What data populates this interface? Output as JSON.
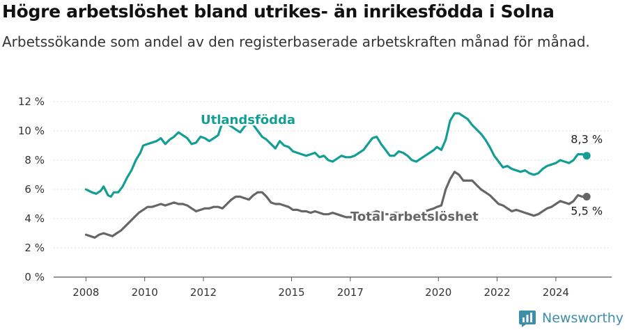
{
  "title": "Högre arbetslöshet bland utrikes- än inrikesfödda i Solna",
  "subtitle": "Arbetssökande som andel av den registerbaserade arbetskraften månad för månad.",
  "brand": {
    "name": "Newsworthy",
    "icon": "newsworthy-logo-icon",
    "color": "#3d8ea8"
  },
  "chart_data": {
    "type": "line",
    "ylim": [
      0,
      12
    ],
    "y_ticks": [
      0,
      2,
      4,
      6,
      8,
      10,
      12
    ],
    "y_tick_labels": [
      "0 %",
      "2 %",
      "4 %",
      "6 %",
      "8 %",
      "10 %",
      "12 %"
    ],
    "x_ticks": [
      2008,
      2010,
      2012,
      2015,
      2017,
      2020,
      2022,
      2024
    ],
    "x_tick_labels": [
      "2008",
      "2010",
      "2012",
      "2015",
      "2017",
      "2020",
      "2022",
      "2024"
    ],
    "grid": true,
    "series": [
      {
        "name": "Utlandsfödda",
        "color": "#139e95",
        "end_label": "8,3 %",
        "points": [
          [
            2008.0,
            6.0
          ],
          [
            2008.2,
            5.8
          ],
          [
            2008.35,
            5.7
          ],
          [
            2008.5,
            5.9
          ],
          [
            2008.6,
            6.2
          ],
          [
            2008.75,
            5.6
          ],
          [
            2008.85,
            5.5
          ],
          [
            2008.95,
            5.8
          ],
          [
            2009.1,
            5.8
          ],
          [
            2009.25,
            6.2
          ],
          [
            2009.4,
            6.8
          ],
          [
            2009.55,
            7.3
          ],
          [
            2009.7,
            8.0
          ],
          [
            2009.85,
            8.5
          ],
          [
            2009.95,
            9.0
          ],
          [
            2010.1,
            9.1
          ],
          [
            2010.25,
            9.2
          ],
          [
            2010.4,
            9.3
          ],
          [
            2010.55,
            9.5
          ],
          [
            2010.7,
            9.1
          ],
          [
            2010.85,
            9.4
          ],
          [
            2011.0,
            9.6
          ],
          [
            2011.15,
            9.9
          ],
          [
            2011.3,
            9.7
          ],
          [
            2011.45,
            9.5
          ],
          [
            2011.6,
            9.1
          ],
          [
            2011.75,
            9.2
          ],
          [
            2011.9,
            9.6
          ],
          [
            2012.05,
            9.5
          ],
          [
            2012.2,
            9.3
          ],
          [
            2012.35,
            9.5
          ],
          [
            2012.5,
            9.7
          ],
          [
            2012.65,
            10.6
          ],
          [
            2012.8,
            10.5
          ],
          [
            2012.95,
            10.3
          ],
          [
            2013.1,
            10.1
          ],
          [
            2013.25,
            9.9
          ],
          [
            2013.4,
            10.3
          ],
          [
            2013.55,
            10.6
          ],
          [
            2013.7,
            10.4
          ],
          [
            2013.85,
            10.0
          ],
          [
            2014.0,
            9.6
          ],
          [
            2014.15,
            9.4
          ],
          [
            2014.3,
            9.1
          ],
          [
            2014.45,
            8.8
          ],
          [
            2014.6,
            9.3
          ],
          [
            2014.75,
            9.0
          ],
          [
            2014.9,
            8.9
          ],
          [
            2015.05,
            8.6
          ],
          [
            2015.2,
            8.5
          ],
          [
            2015.35,
            8.4
          ],
          [
            2015.5,
            8.3
          ],
          [
            2015.65,
            8.4
          ],
          [
            2015.8,
            8.5
          ],
          [
            2015.95,
            8.2
          ],
          [
            2016.1,
            8.3
          ],
          [
            2016.25,
            8.0
          ],
          [
            2016.4,
            7.9
          ],
          [
            2016.55,
            8.1
          ],
          [
            2016.7,
            8.3
          ],
          [
            2016.85,
            8.2
          ],
          [
            2017.0,
            8.2
          ],
          [
            2017.15,
            8.3
          ],
          [
            2017.3,
            8.5
          ],
          [
            2017.45,
            8.7
          ],
          [
            2017.6,
            9.1
          ],
          [
            2017.75,
            9.5
          ],
          [
            2017.9,
            9.6
          ],
          [
            2018.05,
            9.1
          ],
          [
            2018.2,
            8.7
          ],
          [
            2018.35,
            8.3
          ],
          [
            2018.5,
            8.3
          ],
          [
            2018.65,
            8.6
          ],
          [
            2018.8,
            8.5
          ],
          [
            2018.95,
            8.3
          ],
          [
            2019.1,
            8.0
          ],
          [
            2019.25,
            7.9
          ],
          [
            2019.4,
            8.1
          ],
          [
            2019.55,
            8.3
          ],
          [
            2019.7,
            8.5
          ],
          [
            2019.85,
            8.7
          ],
          [
            2019.95,
            8.9
          ],
          [
            2020.1,
            8.7
          ],
          [
            2020.25,
            9.4
          ],
          [
            2020.4,
            10.7
          ],
          [
            2020.55,
            11.2
          ],
          [
            2020.7,
            11.2
          ],
          [
            2020.85,
            11.0
          ],
          [
            2021.0,
            10.8
          ],
          [
            2021.15,
            10.4
          ],
          [
            2021.3,
            10.1
          ],
          [
            2021.45,
            9.8
          ],
          [
            2021.6,
            9.4
          ],
          [
            2021.75,
            8.9
          ],
          [
            2021.9,
            8.3
          ],
          [
            2022.05,
            7.9
          ],
          [
            2022.2,
            7.5
          ],
          [
            2022.35,
            7.6
          ],
          [
            2022.5,
            7.4
          ],
          [
            2022.65,
            7.3
          ],
          [
            2022.8,
            7.2
          ],
          [
            2022.95,
            7.3
          ],
          [
            2023.1,
            7.1
          ],
          [
            2023.25,
            7.0
          ],
          [
            2023.4,
            7.1
          ],
          [
            2023.55,
            7.4
          ],
          [
            2023.7,
            7.6
          ],
          [
            2023.85,
            7.7
          ],
          [
            2024.0,
            7.8
          ],
          [
            2024.15,
            8.0
          ],
          [
            2024.3,
            7.9
          ],
          [
            2024.45,
            7.8
          ],
          [
            2024.6,
            8.0
          ],
          [
            2024.75,
            8.4
          ],
          [
            2024.9,
            8.4
          ],
          [
            2025.05,
            8.3
          ]
        ]
      },
      {
        "name": "Total arbetslöshet",
        "color": "#666666",
        "end_label": "5,5 %",
        "points": [
          [
            2008.0,
            2.9
          ],
          [
            2008.15,
            2.8
          ],
          [
            2008.3,
            2.7
          ],
          [
            2008.45,
            2.9
          ],
          [
            2008.6,
            3.0
          ],
          [
            2008.75,
            2.9
          ],
          [
            2008.9,
            2.8
          ],
          [
            2009.05,
            3.0
          ],
          [
            2009.2,
            3.2
          ],
          [
            2009.35,
            3.5
          ],
          [
            2009.5,
            3.8
          ],
          [
            2009.65,
            4.1
          ],
          [
            2009.8,
            4.4
          ],
          [
            2009.95,
            4.6
          ],
          [
            2010.1,
            4.8
          ],
          [
            2010.25,
            4.8
          ],
          [
            2010.4,
            4.9
          ],
          [
            2010.55,
            5.0
          ],
          [
            2010.7,
            4.9
          ],
          [
            2010.85,
            5.0
          ],
          [
            2011.0,
            5.1
          ],
          [
            2011.15,
            5.0
          ],
          [
            2011.3,
            5.0
          ],
          [
            2011.45,
            4.9
          ],
          [
            2011.6,
            4.7
          ],
          [
            2011.75,
            4.5
          ],
          [
            2011.9,
            4.6
          ],
          [
            2012.05,
            4.7
          ],
          [
            2012.2,
            4.7
          ],
          [
            2012.35,
            4.8
          ],
          [
            2012.5,
            4.8
          ],
          [
            2012.65,
            4.7
          ],
          [
            2012.8,
            5.0
          ],
          [
            2012.95,
            5.3
          ],
          [
            2013.1,
            5.5
          ],
          [
            2013.25,
            5.5
          ],
          [
            2013.4,
            5.4
          ],
          [
            2013.55,
            5.3
          ],
          [
            2013.7,
            5.6
          ],
          [
            2013.85,
            5.8
          ],
          [
            2014.0,
            5.8
          ],
          [
            2014.15,
            5.5
          ],
          [
            2014.3,
            5.1
          ],
          [
            2014.45,
            5.0
          ],
          [
            2014.6,
            5.0
          ],
          [
            2014.75,
            4.9
          ],
          [
            2014.9,
            4.8
          ],
          [
            2015.05,
            4.6
          ],
          [
            2015.2,
            4.6
          ],
          [
            2015.35,
            4.5
          ],
          [
            2015.5,
            4.5
          ],
          [
            2015.65,
            4.4
          ],
          [
            2015.8,
            4.5
          ],
          [
            2015.95,
            4.4
          ],
          [
            2016.1,
            4.3
          ],
          [
            2016.25,
            4.3
          ],
          [
            2016.4,
            4.4
          ],
          [
            2016.55,
            4.3
          ],
          [
            2016.7,
            4.2
          ],
          [
            2016.85,
            4.1
          ],
          [
            2017.0,
            4.1
          ],
          [
            2017.15,
            4.1
          ],
          [
            2017.3,
            4.2
          ],
          [
            2017.45,
            4.3
          ],
          [
            2017.6,
            4.4
          ],
          [
            2017.75,
            4.4
          ],
          [
            2017.9,
            4.5
          ],
          [
            2018.05,
            4.4
          ],
          [
            2018.2,
            4.3
          ],
          [
            2018.35,
            4.3
          ],
          [
            2018.5,
            4.4
          ],
          [
            2018.65,
            4.4
          ],
          [
            2018.8,
            4.3
          ],
          [
            2018.95,
            4.2
          ],
          [
            2019.1,
            4.2
          ],
          [
            2019.25,
            4.3
          ],
          [
            2019.4,
            4.4
          ],
          [
            2019.55,
            4.5
          ],
          [
            2019.7,
            4.6
          ],
          [
            2019.85,
            4.7
          ],
          [
            2019.95,
            4.8
          ],
          [
            2020.1,
            4.9
          ],
          [
            2020.25,
            6.0
          ],
          [
            2020.4,
            6.7
          ],
          [
            2020.55,
            7.2
          ],
          [
            2020.7,
            7.0
          ],
          [
            2020.85,
            6.6
          ],
          [
            2021.0,
            6.6
          ],
          [
            2021.15,
            6.6
          ],
          [
            2021.3,
            6.3
          ],
          [
            2021.45,
            6.0
          ],
          [
            2021.6,
            5.8
          ],
          [
            2021.75,
            5.6
          ],
          [
            2021.9,
            5.3
          ],
          [
            2022.05,
            5.0
          ],
          [
            2022.2,
            4.9
          ],
          [
            2022.35,
            4.7
          ],
          [
            2022.5,
            4.5
          ],
          [
            2022.65,
            4.6
          ],
          [
            2022.8,
            4.5
          ],
          [
            2022.95,
            4.4
          ],
          [
            2023.1,
            4.3
          ],
          [
            2023.25,
            4.2
          ],
          [
            2023.4,
            4.3
          ],
          [
            2023.55,
            4.5
          ],
          [
            2023.7,
            4.7
          ],
          [
            2023.85,
            4.8
          ],
          [
            2024.0,
            5.0
          ],
          [
            2024.15,
            5.2
          ],
          [
            2024.3,
            5.1
          ],
          [
            2024.45,
            5.0
          ],
          [
            2024.6,
            5.2
          ],
          [
            2024.75,
            5.6
          ],
          [
            2024.9,
            5.5
          ],
          [
            2025.05,
            5.5
          ]
        ]
      }
    ]
  }
}
